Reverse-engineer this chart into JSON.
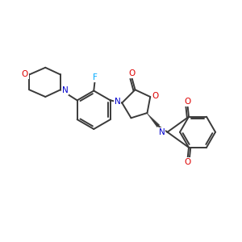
{
  "background_color": "#ffffff",
  "bond_color": "#3a3a3a",
  "N_color": "#0000cd",
  "O_color": "#dd0000",
  "F_color": "#00aaff",
  "figsize": [
    3.0,
    3.0
  ],
  "dpi": 100,
  "xlim": [
    0,
    12
  ],
  "ylim": [
    0,
    12
  ]
}
